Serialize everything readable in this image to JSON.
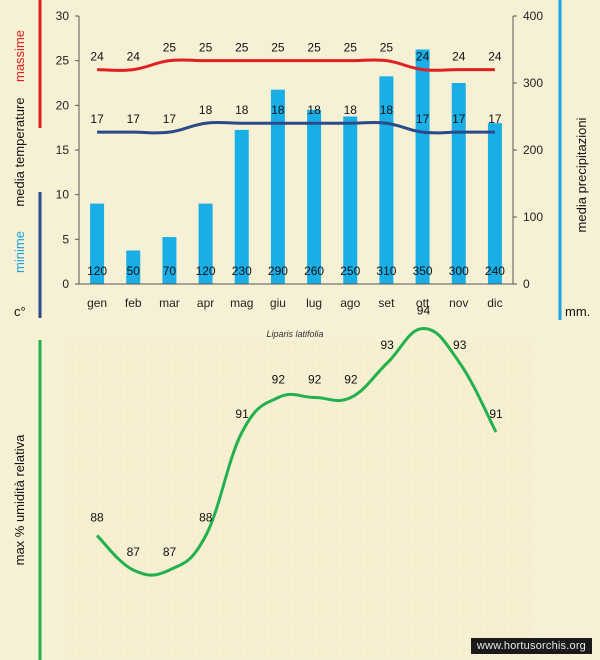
{
  "chart_data": [
    {
      "type": "bar+line",
      "categories": [
        "gen",
        "feb",
        "mar",
        "apr",
        "mag",
        "giu",
        "lug",
        "ago",
        "set",
        "ott",
        "nov",
        "dic"
      ],
      "series": [
        {
          "name": "massime",
          "axis": "left",
          "kind": "line",
          "color": "#e02020",
          "values": [
            24,
            24,
            25,
            25,
            25,
            25,
            25,
            25,
            25,
            24,
            24,
            24
          ]
        },
        {
          "name": "minime",
          "axis": "left",
          "kind": "line",
          "color": "#2a4a8a",
          "values": [
            17,
            17,
            17,
            18,
            18,
            18,
            18,
            18,
            18,
            17,
            17,
            17
          ]
        },
        {
          "name": "media precipitazioni",
          "axis": "right",
          "kind": "bar",
          "color": "#19aee6",
          "values": [
            120,
            50,
            70,
            120,
            230,
            290,
            260,
            250,
            310,
            350,
            300,
            240
          ]
        }
      ],
      "left_axis": {
        "ylim": [
          0,
          30
        ],
        "ticks": [
          "0",
          "5",
          "10",
          "15",
          "20",
          "25",
          "30"
        ],
        "label_top": "massime",
        "label_mid": "media  temperature",
        "label_bottom": "minime",
        "unit": "c°"
      },
      "right_axis": {
        "ylim": [
          0,
          400
        ],
        "ticks": [
          "0",
          "100",
          "200",
          "300",
          "400"
        ],
        "label": "media  precipitazioni",
        "unit": "mm."
      },
      "title": "Liparis latifolia"
    },
    {
      "type": "line",
      "categories": [
        "gen",
        "feb",
        "mar",
        "apr",
        "mag",
        "giu",
        "lug",
        "ago",
        "set",
        "ott",
        "nov",
        "dic"
      ],
      "values": [
        88,
        87,
        87,
        88,
        91,
        92,
        92,
        92,
        93,
        94,
        93,
        91
      ],
      "ylabel": "max  %  umidità relativa",
      "color": "#22b14c"
    }
  ],
  "colors": {
    "red": "#e02020",
    "blue_dark": "#2a4a8a",
    "bar": "#19aee6",
    "green": "#22b14c",
    "accent_blue": "#1aa3e0"
  },
  "watermark": "www.hortusorchis.org"
}
